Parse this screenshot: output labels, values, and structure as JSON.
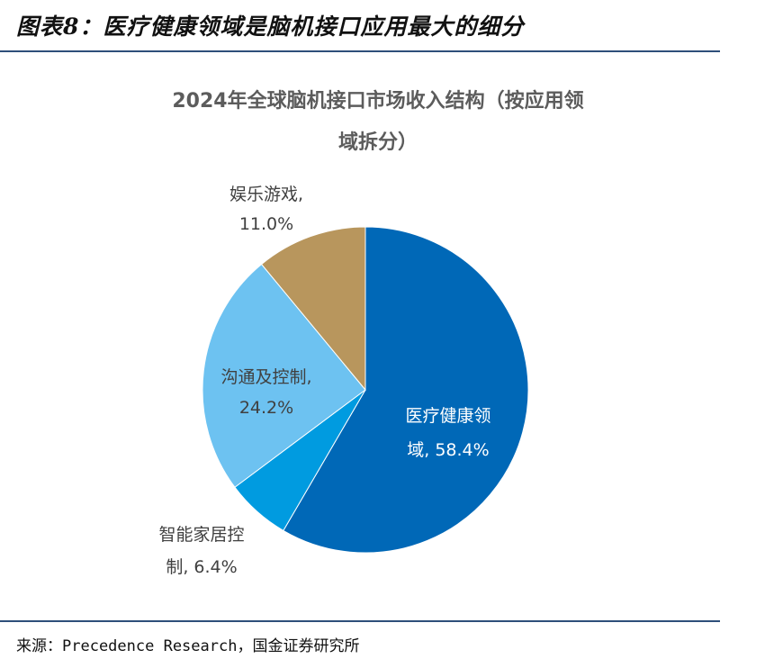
{
  "header": {
    "figure_title": "图表8：医疗健康领域是脑机接口应用最大的细分"
  },
  "chart_data": {
    "type": "pie",
    "title_line1": "2024年全球脑机接口市场收入结构（按应用领",
    "title_line2": "域拆分）",
    "slices": [
      {
        "name": "医疗健康领域",
        "value": 58.4,
        "label_lines": [
          "医疗健康领",
          "域, 58.4%"
        ],
        "color": "#0068b7",
        "label_color": "#ffffff"
      },
      {
        "name": "智能家居控制",
        "value": 6.4,
        "label_lines": [
          "智能家居控",
          "制, 6.4%"
        ],
        "color": "#009be0",
        "label_color": "#404040"
      },
      {
        "name": "沟通及控制",
        "value": 24.2,
        "label_lines": [
          "沟通及控制,",
          "24.2%"
        ],
        "color": "#6dc2f1",
        "label_color": "#404040"
      },
      {
        "name": "娱乐游戏",
        "value": 11.0,
        "label_lines": [
          "娱乐游戏,",
          "11.0%"
        ],
        "color": "#b8965d",
        "label_color": "#404040"
      }
    ]
  },
  "footer": {
    "source": "来源：Precedence Research，国金证券研究所"
  }
}
